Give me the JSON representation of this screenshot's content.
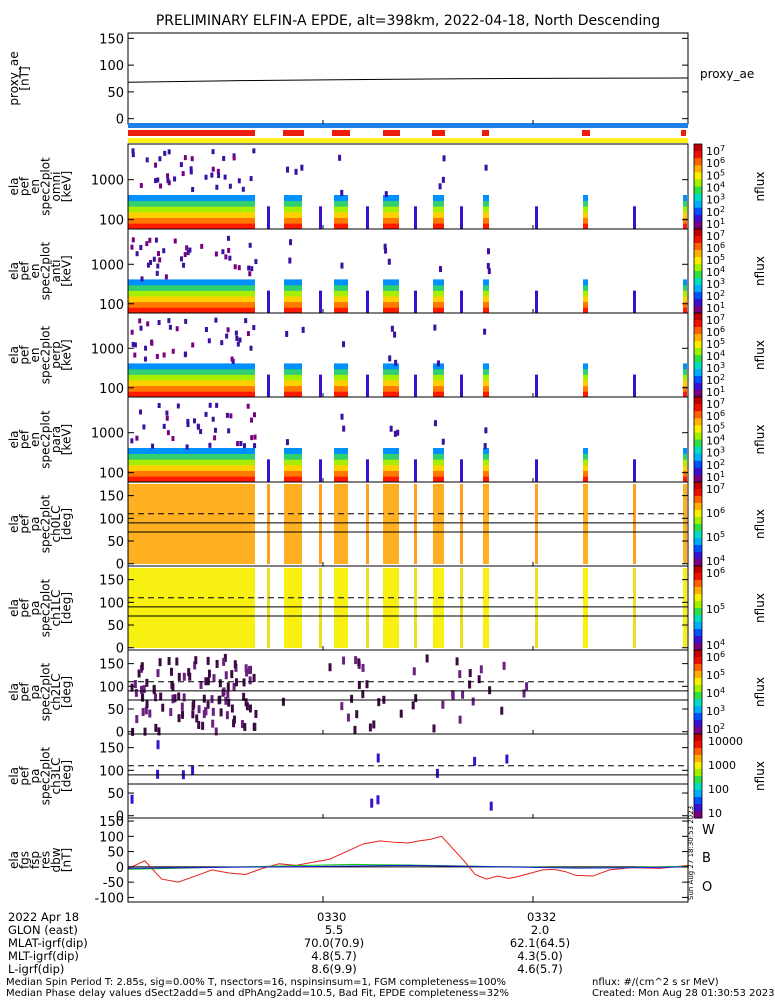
{
  "title": "PRELIMINARY ELFIN-A EPDE, alt=398km, 2022-04-18, North Descending",
  "colors": {
    "bar_blue": "#1e7fe6",
    "bar_red": "#ee1c0c",
    "bar_yellow": "#fff020",
    "w": "#e8201c",
    "b": "#10d010",
    "o": "#1a1ae0"
  },
  "chart_data": [
    {
      "type": "line",
      "name": "proxy_ae",
      "ylabel_lines": [
        "proxy_ae",
        "[nT]"
      ],
      "legend": "proxy_ae",
      "yticks": [
        "150",
        "100",
        "50",
        "0"
      ],
      "ylim": [
        -10,
        160
      ],
      "x": [
        0,
        0.2,
        0.4,
        0.6,
        0.8,
        1.0
      ],
      "y": [
        68,
        71,
        73,
        74.5,
        75.5,
        76
      ]
    },
    {
      "type": "spectrogram",
      "ylabel_lines": [
        "ela",
        "pef",
        "en",
        "spec2plot",
        "omni",
        "[keV]"
      ],
      "yticks": [
        "1000",
        "100"
      ],
      "zlabel": "nflux",
      "ztick_exponents": [
        "1",
        "2",
        "3",
        "4",
        "5",
        "6",
        "7"
      ],
      "energy_bands": [
        "red",
        "orange",
        "yellow",
        "green",
        "cyan",
        "blue"
      ]
    },
    {
      "type": "spectrogram",
      "ylabel_lines": [
        "ela",
        "pef",
        "en",
        "spec2plot",
        "anti",
        "[keV]"
      ],
      "yticks": [
        "1000",
        "100"
      ],
      "zlabel": "nflux",
      "ztick_exponents": [
        "1",
        "2",
        "3",
        "4",
        "5",
        "6",
        "7"
      ]
    },
    {
      "type": "spectrogram",
      "ylabel_lines": [
        "ela",
        "pef",
        "en",
        "spec2plot",
        "perp",
        "[keV]"
      ],
      "yticks": [
        "1000",
        "100"
      ],
      "zlabel": "nflux",
      "ztick_exponents": [
        "1",
        "2",
        "3",
        "4",
        "5",
        "6",
        "7"
      ]
    },
    {
      "type": "spectrogram",
      "ylabel_lines": [
        "ela",
        "pef",
        "en",
        "spec2plot",
        "para",
        "[keV]"
      ],
      "yticks": [
        "1000",
        "100"
      ],
      "zlabel": "nflux",
      "ztick_exponents": [
        "1",
        "2",
        "3",
        "4",
        "5",
        "6",
        "7"
      ]
    },
    {
      "type": "spectrogram",
      "ylabel_lines": [
        "ela",
        "pef",
        "pa",
        "spec2plot",
        "ch0LC",
        "[deg]"
      ],
      "yticks": [
        "150",
        "100",
        "50",
        "0"
      ],
      "zlabel": "nflux",
      "ztick_exponents": [
        "4",
        "5",
        "6",
        "7"
      ]
    },
    {
      "type": "spectrogram",
      "ylabel_lines": [
        "ela",
        "pef",
        "pa",
        "spec2plot",
        "ch1LC",
        "[deg]"
      ],
      "yticks": [
        "150",
        "100",
        "50",
        "0"
      ],
      "zlabel": "nflux",
      "ztick_exponents": [
        "4",
        "5",
        "6"
      ]
    },
    {
      "type": "spectrogram",
      "ylabel_lines": [
        "ela",
        "pef",
        "pa",
        "spec2plot",
        "ch2LC",
        "[deg]"
      ],
      "yticks": [
        "150",
        "100",
        "50",
        "0"
      ],
      "zlabel": "nflux",
      "ztick_exponents": [
        "2",
        "3",
        "4",
        "5",
        "6"
      ]
    },
    {
      "type": "spectrogram",
      "ylabel_lines": [
        "ela",
        "pef",
        "pa",
        "spec2plot",
        "ch3LC",
        "[deg]"
      ],
      "yticks": [
        "150",
        "100",
        "50",
        "0"
      ],
      "zlabel": "nflux",
      "zticks_plain": [
        "10000",
        "1000",
        "100",
        "10"
      ]
    },
    {
      "type": "line",
      "ylabel_lines": [
        "ela",
        "fgs",
        "fsp",
        "res",
        "dbw",
        "[nT]"
      ],
      "yticks": [
        "150",
        "100",
        "50",
        "0",
        "-50",
        "-100"
      ],
      "ylim": [
        -115,
        160
      ],
      "legend": [
        "W",
        "B",
        "O"
      ],
      "series": [
        {
          "name": "W",
          "x": [
            0,
            0.03,
            0.06,
            0.09,
            0.12,
            0.15,
            0.18,
            0.21,
            0.24,
            0.27,
            0.3,
            0.33,
            0.36,
            0.39,
            0.42,
            0.45,
            0.48,
            0.5,
            0.52,
            0.54,
            0.56,
            0.58,
            0.6,
            0.62,
            0.64,
            0.66,
            0.68,
            0.7,
            0.72,
            0.74,
            0.76,
            0.78,
            0.8,
            0.83,
            0.86,
            0.9,
            0.95,
            1.0
          ],
          "y": [
            -6,
            20,
            -40,
            -50,
            -30,
            -10,
            -20,
            -25,
            -5,
            10,
            5,
            15,
            25,
            50,
            75,
            85,
            80,
            78,
            85,
            90,
            100,
            60,
            20,
            -25,
            -40,
            -30,
            -38,
            -30,
            -20,
            -10,
            -8,
            -15,
            -28,
            -30,
            -10,
            -2,
            -5,
            5
          ]
        },
        {
          "name": "B",
          "x": [
            0,
            0.1,
            0.2,
            0.3,
            0.4,
            0.5,
            0.6,
            0.7,
            0.8,
            0.9,
            1.0
          ],
          "y": [
            -8,
            -4,
            0,
            4,
            8,
            6,
            3,
            0,
            -3,
            -2,
            2
          ]
        },
        {
          "name": "O",
          "x": [
            0,
            0.1,
            0.2,
            0.3,
            0.4,
            0.5,
            0.6,
            0.7,
            0.8,
            0.9,
            1.0
          ],
          "y": [
            -5,
            -3,
            -1,
            1,
            3,
            5,
            2,
            -1,
            -4,
            -3,
            0
          ]
        }
      ]
    }
  ],
  "side_text": "Sun Aug 27 18:30:53 2023",
  "ephemeris": {
    "date": "2022 Apr 18",
    "tick1": "0330",
    "tick2": "0332",
    "rows": [
      {
        "label": "GLON (east)",
        "v1": "5.5",
        "v2": "2.0"
      },
      {
        "label": "MLAT-igrf(dip)",
        "v1": "70.0(70.9)",
        "v2": "62.1(64.5)"
      },
      {
        "label": "MLT-igrf(dip)",
        "v1": "4.8(5.7)",
        "v2": "4.3(5.0)"
      },
      {
        "label": "L-igrf(dip)",
        "v1": "8.6(9.9)",
        "v2": "4.6(5.7)"
      }
    ]
  },
  "footer": {
    "left1": "Median Spin Period T: 2.85s, sig=0.00% T, nsectors=16, nspinsinsum=1, FGM completeness=100%",
    "left2": "Median Phase delay values dSect2add=5 and dPhAng2add=10.5, Bad Fit, EPDE completeness=32%",
    "right1": "nflux: #/(cm^2 s sr MeV)",
    "right2": "Created: Mon Aug 28 01:30:53 2023"
  }
}
